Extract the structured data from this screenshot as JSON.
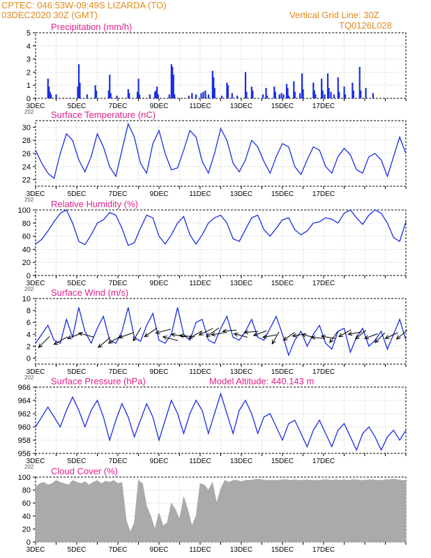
{
  "header": {
    "line1_left": "CPTEC:   046:53W-09:49S   LIZARDA (TO)",
    "line2_left": "03DEC2020 30Z (GMT)",
    "line1_right": "Vertical Grid Line: 30Z",
    "line2_right": "TQ0126L028",
    "color": "#e08a1a"
  },
  "title_color": "#e0208a",
  "series_color": "#1a2ee0",
  "cloud_color": "#aaaaaa",
  "x_labels": [
    "3DEC",
    "5DEC",
    "7DEC",
    "9DEC",
    "11DEC",
    "13DEC",
    "15DEC",
    "17DEC"
  ],
  "x_prefix_label": "202",
  "chart_data": [
    {
      "id": "precip",
      "type": "bar",
      "title": "Precipitation (mm/h)",
      "ylim": [
        0,
        5
      ],
      "yticks": [
        0,
        1,
        2,
        3,
        4,
        5
      ],
      "x_unit": "days since 03DEC2020 30Z",
      "events": [
        [
          0.6,
          1.5
        ],
        [
          0.65,
          0.9
        ],
        [
          0.7,
          0.5
        ],
        [
          0.75,
          0.3
        ],
        [
          1.0,
          0.3
        ],
        [
          2.05,
          0.9
        ],
        [
          2.1,
          2.6
        ],
        [
          2.15,
          1.2
        ],
        [
          2.5,
          0.3
        ],
        [
          2.9,
          1.0
        ],
        [
          2.95,
          0.6
        ],
        [
          3.55,
          0.6
        ],
        [
          3.6,
          1.8
        ],
        [
          3.65,
          0.4
        ],
        [
          3.95,
          0.2
        ],
        [
          4.5,
          0.7
        ],
        [
          4.55,
          0.4
        ],
        [
          4.95,
          0.5
        ],
        [
          5.0,
          1.5
        ],
        [
          5.05,
          0.3
        ],
        [
          5.55,
          0.3
        ],
        [
          5.8,
          0.5
        ],
        [
          5.85,
          0.6
        ],
        [
          5.9,
          0.9
        ],
        [
          5.95,
          0.3
        ],
        [
          6.5,
          0.3
        ],
        [
          6.6,
          2.6
        ],
        [
          6.65,
          2.4
        ],
        [
          6.7,
          1.8
        ],
        [
          6.75,
          0.3
        ],
        [
          7.45,
          0.2
        ],
        [
          7.6,
          0.4
        ],
        [
          7.8,
          0.3
        ],
        [
          8.05,
          0.4
        ],
        [
          8.15,
          0.5
        ],
        [
          8.25,
          0.6
        ],
        [
          8.4,
          0.3
        ],
        [
          8.6,
          2.1
        ],
        [
          8.65,
          1.6
        ],
        [
          8.7,
          0.8
        ],
        [
          9.05,
          0.2
        ],
        [
          9.3,
          1.2
        ],
        [
          9.35,
          1.0
        ],
        [
          9.55,
          0.4
        ],
        [
          9.8,
          0.2
        ],
        [
          10.2,
          2.0
        ],
        [
          10.25,
          0.5
        ],
        [
          10.5,
          0.9
        ],
        [
          10.55,
          0.6
        ],
        [
          11.05,
          0.3
        ],
        [
          11.2,
          0.8
        ],
        [
          11.25,
          0.2
        ],
        [
          11.6,
          0.9
        ],
        [
          11.65,
          0.5
        ],
        [
          11.85,
          0.3
        ],
        [
          11.95,
          0.4
        ],
        [
          12.05,
          0.3
        ],
        [
          12.2,
          1.1
        ],
        [
          12.25,
          0.8
        ],
        [
          12.3,
          0.2
        ],
        [
          12.55,
          1.3
        ],
        [
          12.6,
          0.5
        ],
        [
          12.85,
          0.4
        ],
        [
          12.95,
          1.9
        ],
        [
          13.0,
          0.7
        ],
        [
          13.5,
          1.2
        ],
        [
          13.55,
          0.6
        ],
        [
          13.6,
          0.3
        ],
        [
          13.9,
          1.5
        ],
        [
          13.95,
          0.6
        ],
        [
          14.05,
          0.3
        ],
        [
          14.2,
          1.9
        ],
        [
          14.25,
          0.8
        ],
        [
          14.35,
          0.5
        ],
        [
          14.5,
          0.3
        ],
        [
          14.7,
          1.6
        ],
        [
          14.75,
          0.5
        ],
        [
          15.0,
          0.9
        ],
        [
          15.05,
          0.3
        ],
        [
          15.4,
          1.2
        ],
        [
          15.45,
          0.6
        ],
        [
          15.75,
          2.4
        ],
        [
          15.8,
          0.6
        ],
        [
          16.05,
          0.8
        ],
        [
          16.4,
          0.4
        ]
      ]
    },
    {
      "id": "temp",
      "type": "line",
      "title": "Surface Temperature (nC)",
      "ylim": [
        21,
        31
      ],
      "yticks": [
        22,
        24,
        26,
        28,
        30
      ],
      "x": [
        0,
        0.3,
        0.6,
        0.9,
        1.2,
        1.5,
        1.8,
        2.1,
        2.4,
        2.7,
        3.0,
        3.3,
        3.6,
        3.9,
        4.2,
        4.5,
        4.8,
        5.1,
        5.4,
        5.7,
        6.0,
        6.3,
        6.6,
        6.9,
        7.2,
        7.5,
        7.8,
        8.1,
        8.4,
        8.7,
        9.0,
        9.3,
        9.6,
        9.9,
        10.2,
        10.5,
        10.8,
        11.1,
        11.4,
        11.7,
        12.0,
        12.3,
        12.6,
        12.9,
        13.2,
        13.5,
        13.8,
        14.1,
        14.4,
        14.7,
        15.0,
        15.3,
        15.6,
        15.9,
        16.2,
        16.5,
        16.8,
        17.1,
        17.4,
        17.7,
        18.0
      ],
      "y": [
        26.5,
        24.5,
        23.0,
        22.2,
        26.0,
        29.0,
        28.0,
        25.0,
        23.2,
        25.5,
        29.0,
        27.0,
        24.0,
        22.5,
        26.5,
        30.5,
        28.5,
        24.5,
        23.0,
        27.5,
        29.5,
        26.0,
        23.5,
        23.8,
        26.5,
        29.5,
        28.5,
        24.8,
        23.0,
        26.0,
        29.8,
        28.0,
        24.5,
        23.2,
        25.0,
        28.0,
        27.0,
        24.8,
        23.0,
        25.5,
        27.5,
        27.0,
        24.0,
        22.8,
        25.0,
        27.0,
        26.5,
        24.0,
        23.0,
        25.5,
        26.8,
        25.8,
        23.5,
        23.0,
        25.5,
        26.0,
        25.0,
        22.5,
        25.5,
        28.5,
        26.0
      ]
    },
    {
      "id": "rh",
      "type": "line",
      "title": "Relative Humidity (%)",
      "ylim": [
        0,
        100
      ],
      "yticks": [
        0,
        20,
        40,
        60,
        80,
        100
      ],
      "x": [
        0,
        0.3,
        0.6,
        0.9,
        1.2,
        1.5,
        1.8,
        2.1,
        2.4,
        2.7,
        3.0,
        3.3,
        3.6,
        3.9,
        4.2,
        4.5,
        4.8,
        5.1,
        5.4,
        5.7,
        6.0,
        6.3,
        6.6,
        6.9,
        7.2,
        7.5,
        7.8,
        8.1,
        8.4,
        8.7,
        9.0,
        9.3,
        9.6,
        9.9,
        10.2,
        10.5,
        10.8,
        11.1,
        11.4,
        11.7,
        12.0,
        12.3,
        12.6,
        12.9,
        13.2,
        13.5,
        13.8,
        14.1,
        14.4,
        14.7,
        15.0,
        15.3,
        15.6,
        15.9,
        16.2,
        16.5,
        16.8,
        17.1,
        17.4,
        17.7,
        18.0
      ],
      "y": [
        48,
        55,
        68,
        82,
        95,
        100,
        80,
        52,
        47,
        62,
        80,
        85,
        96,
        92,
        72,
        46,
        50,
        72,
        92,
        88,
        60,
        48,
        62,
        80,
        90,
        62,
        48,
        62,
        80,
        88,
        92,
        80,
        56,
        52,
        70,
        88,
        92,
        70,
        60,
        72,
        85,
        88,
        70,
        62,
        68,
        80,
        82,
        88,
        86,
        80,
        95,
        100,
        88,
        78,
        92,
        100,
        95,
        80,
        58,
        52,
        82
      ]
    },
    {
      "id": "wind",
      "type": "line",
      "title": "Surface Wind (m/s)",
      "ylim": [
        -1,
        10
      ],
      "yticks": [
        0,
        2,
        4,
        6,
        8,
        10
      ],
      "x": [
        0,
        0.3,
        0.6,
        0.9,
        1.2,
        1.5,
        1.8,
        2.1,
        2.4,
        2.7,
        3.0,
        3.3,
        3.6,
        3.9,
        4.2,
        4.5,
        4.8,
        5.1,
        5.4,
        5.7,
        6.0,
        6.3,
        6.6,
        6.9,
        7.2,
        7.5,
        7.8,
        8.1,
        8.4,
        8.7,
        9.0,
        9.3,
        9.6,
        9.9,
        10.2,
        10.5,
        10.8,
        11.1,
        11.4,
        11.7,
        12.0,
        12.3,
        12.6,
        12.9,
        13.2,
        13.5,
        13.8,
        14.1,
        14.4,
        14.7,
        15.0,
        15.3,
        15.6,
        15.9,
        16.2,
        16.5,
        16.8,
        17.1,
        17.4,
        17.7,
        18.0
      ],
      "y": [
        2.5,
        4.0,
        5.5,
        3.0,
        2.5,
        6.5,
        3.5,
        8.5,
        4.5,
        2.5,
        5.0,
        7.0,
        3.0,
        2.5,
        4.5,
        8.5,
        3.5,
        2.8,
        5.5,
        7.5,
        3.0,
        2.5,
        4.0,
        8.5,
        4.0,
        3.0,
        6.0,
        6.5,
        3.0,
        2.5,
        5.0,
        7.0,
        3.5,
        3.0,
        4.5,
        6.5,
        3.5,
        3.0,
        5.0,
        7.0,
        4.0,
        0.5,
        3.0,
        4.5,
        2.0,
        4.0,
        5.5,
        2.5,
        1.5,
        4.5,
        5.0,
        1.0,
        3.5,
        5.0,
        2.0,
        3.0,
        4.5,
        1.5,
        4.0,
        6.5,
        3.0
      ],
      "arrows": [
        [
          0.15,
          1.8,
          45,
          1.0
        ],
        [
          0.9,
          2.3,
          30,
          1.0
        ],
        [
          1.55,
          3.3,
          20,
          1.0
        ],
        [
          2.1,
          4.2,
          -15,
          1.0
        ],
        [
          3.05,
          1.8,
          40,
          1.0
        ],
        [
          3.55,
          2.5,
          30,
          1.0
        ],
        [
          4.05,
          3.4,
          20,
          1.0
        ],
        [
          4.75,
          2.9,
          60,
          1.0
        ],
        [
          5.3,
          3.6,
          35,
          1.0
        ],
        [
          5.85,
          4.2,
          15,
          1.0
        ],
        [
          6.2,
          3.6,
          -15,
          1.0
        ],
        [
          6.6,
          4.0,
          -10,
          1.0
        ],
        [
          7.0,
          3.8,
          -5,
          1.0
        ],
        [
          7.45,
          3.3,
          30,
          1.0
        ],
        [
          7.95,
          3.9,
          25,
          1.0
        ],
        [
          8.3,
          3.6,
          35,
          1.0
        ],
        [
          8.55,
          3.9,
          10,
          0.9
        ],
        [
          9.1,
          4.5,
          5,
          0.9
        ],
        [
          9.65,
          4.1,
          -15,
          0.9
        ],
        [
          10.15,
          4.3,
          5,
          0.9
        ],
        [
          10.6,
          3.8,
          20,
          0.9
        ],
        [
          11.05,
          3.5,
          10,
          0.9
        ],
        [
          11.5,
          2.4,
          60,
          0.9
        ],
        [
          12.05,
          3.0,
          35,
          0.9
        ],
        [
          12.5,
          3.7,
          10,
          0.9
        ],
        [
          12.95,
          4.0,
          -15,
          0.9
        ],
        [
          13.4,
          3.5,
          -5,
          0.9
        ],
        [
          13.9,
          3.7,
          -10,
          0.9
        ],
        [
          14.3,
          2.6,
          55,
          0.9
        ],
        [
          14.75,
          3.6,
          30,
          0.9
        ],
        [
          15.2,
          4.0,
          10,
          0.9
        ],
        [
          15.55,
          3.2,
          40,
          0.9
        ],
        [
          16.0,
          3.3,
          20,
          0.9
        ],
        [
          16.5,
          2.6,
          45,
          0.9
        ],
        [
          17.0,
          3.3,
          25,
          0.9
        ],
        [
          17.55,
          3.2,
          40,
          0.9
        ]
      ]
    },
    {
      "id": "pres",
      "type": "line",
      "title": "Surface Pressure (hPa)",
      "title_extra": "Model Altitude: 440.143  m",
      "ylim": [
        956,
        966
      ],
      "yticks": [
        956,
        958,
        960,
        962,
        964,
        966
      ],
      "x": [
        0,
        0.3,
        0.6,
        0.9,
        1.2,
        1.5,
        1.8,
        2.1,
        2.4,
        2.7,
        3.0,
        3.3,
        3.6,
        3.9,
        4.2,
        4.5,
        4.8,
        5.1,
        5.4,
        5.7,
        6.0,
        6.3,
        6.6,
        6.9,
        7.2,
        7.5,
        7.8,
        8.1,
        8.4,
        8.7,
        9.0,
        9.3,
        9.6,
        9.9,
        10.2,
        10.5,
        10.8,
        11.1,
        11.4,
        11.7,
        12.0,
        12.3,
        12.6,
        12.9,
        13.2,
        13.5,
        13.8,
        14.1,
        14.4,
        14.7,
        15.0,
        15.3,
        15.6,
        15.9,
        16.2,
        16.5,
        16.8,
        17.1,
        17.4,
        17.7,
        18.0
      ],
      "y": [
        960,
        961.5,
        963,
        961.5,
        960,
        962.5,
        964.5,
        962.5,
        960,
        962.5,
        964,
        961.5,
        958,
        961,
        963.5,
        961.5,
        958.5,
        961,
        963.5,
        961.5,
        958,
        961,
        964,
        962,
        959,
        962,
        964,
        962.5,
        959,
        962,
        965,
        962,
        959,
        962.5,
        964,
        962,
        959,
        961.5,
        962,
        960,
        958,
        960.5,
        961,
        959,
        957,
        959.5,
        961,
        959,
        957,
        959.5,
        960.5,
        958.5,
        956.5,
        959,
        960,
        958.5,
        956.5,
        958.5,
        959.5,
        958,
        959.5
      ]
    },
    {
      "id": "cloud",
      "type": "area",
      "title": "Cloud Cover (%)",
      "ylim": [
        0,
        100
      ],
      "yticks": [
        0,
        20,
        40,
        60,
        80,
        100
      ],
      "x": [
        0,
        0.2,
        0.4,
        0.6,
        0.8,
        1.0,
        1.2,
        1.4,
        1.6,
        1.8,
        2.0,
        2.2,
        2.4,
        2.6,
        2.8,
        3.0,
        3.2,
        3.4,
        3.6,
        3.8,
        4.0,
        4.2,
        4.4,
        4.6,
        4.8,
        5.0,
        5.2,
        5.4,
        5.6,
        5.8,
        6.0,
        6.2,
        6.4,
        6.6,
        6.8,
        7.0,
        7.2,
        7.4,
        7.6,
        7.8,
        8.0,
        8.2,
        8.4,
        8.6,
        8.8,
        9.0,
        9.2,
        9.4,
        9.6,
        9.8,
        10.0,
        10.2,
        10.4,
        10.6,
        10.8,
        11.0,
        11.2,
        11.4,
        11.6,
        11.8,
        12.0,
        12.2,
        12.4,
        12.6,
        12.8,
        13.0,
        13.2,
        13.4,
        13.6,
        13.8,
        14.0,
        14.2,
        14.4,
        14.6,
        14.8,
        15.0,
        15.2,
        15.4,
        15.6,
        15.8,
        16.0,
        16.2,
        16.4,
        16.6,
        16.8,
        17.0,
        17.2,
        17.4,
        17.6,
        17.8,
        18.0
      ],
      "y": [
        85,
        90,
        92,
        88,
        90,
        95,
        92,
        90,
        88,
        95,
        92,
        90,
        93,
        88,
        92,
        95,
        90,
        94,
        92,
        95,
        90,
        92,
        35,
        15,
        30,
        95,
        90,
        55,
        40,
        20,
        45,
        25,
        30,
        60,
        50,
        35,
        70,
        50,
        25,
        40,
        90,
        88,
        80,
        92,
        60,
        82,
        95,
        92,
        95,
        95,
        93,
        95,
        95,
        96,
        97,
        96,
        95,
        95,
        95,
        95,
        96,
        96,
        95,
        96,
        95,
        95,
        96,
        95,
        95,
        95,
        96,
        96,
        95,
        96,
        95,
        96,
        95,
        96,
        96,
        95,
        95,
        96,
        96,
        95,
        95,
        96,
        96,
        97,
        96,
        95,
        95
      ]
    }
  ]
}
